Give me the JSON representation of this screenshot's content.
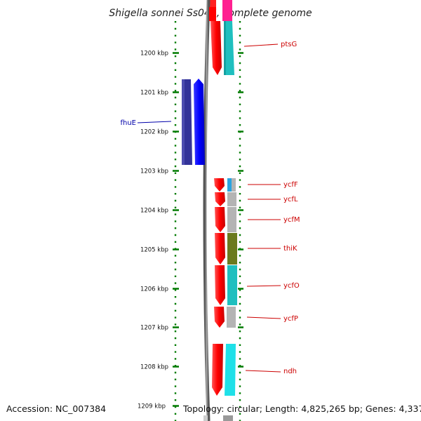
{
  "title": "Shigella sonnei Ss046, complete genome",
  "footer": {
    "accession": "Accession: NC_007384",
    "summary": "Topology: circular; Length: 4,825,265 bp; Genes: 4,337"
  },
  "colors": {
    "tick": "#007a00",
    "forward_cds": "#ff0000",
    "label_red": "#cc0000",
    "label_blue": "#0000aa",
    "backbone": "#888888"
  },
  "ruler": {
    "unit": "kbp",
    "labels": [
      "1200 kbp",
      "1201 kbp",
      "1202 kbp",
      "1203 kbp",
      "1204 kbp",
      "1205 kbp",
      "1206 kbp",
      "1207 kbp",
      "1208 kbp",
      "1209 kbp"
    ]
  },
  "genes": [
    {
      "name": "ptsG",
      "strand": "+",
      "label_color": "#cc0000",
      "cog_color": "#1fbfbf"
    },
    {
      "name": "fhuE",
      "strand": "-",
      "label_color": "#0000aa",
      "cog_color": "#333399"
    },
    {
      "name": "ycfF",
      "strand": "+",
      "label_color": "#cc0000",
      "cog_color": "#2aa4e0"
    },
    {
      "name": "ycfL",
      "strand": "+",
      "label_color": "#cc0000",
      "cog_color": "#b4b4b4"
    },
    {
      "name": "ycfM",
      "strand": "+",
      "label_color": "#cc0000",
      "cog_color": "#b4b4b4"
    },
    {
      "name": "thiK",
      "strand": "+",
      "label_color": "#cc0000",
      "cog_color": "#6b7a1e"
    },
    {
      "name": "ycfO",
      "strand": "+",
      "label_color": "#cc0000",
      "cog_color": "#1fbfbf"
    },
    {
      "name": "ycfP",
      "strand": "+",
      "label_color": "#cc0000",
      "cog_color": "#b4b4b4"
    },
    {
      "name": "ndh",
      "strand": "+",
      "label_color": "#cc0000",
      "cog_color": "#1fe0e8"
    }
  ]
}
